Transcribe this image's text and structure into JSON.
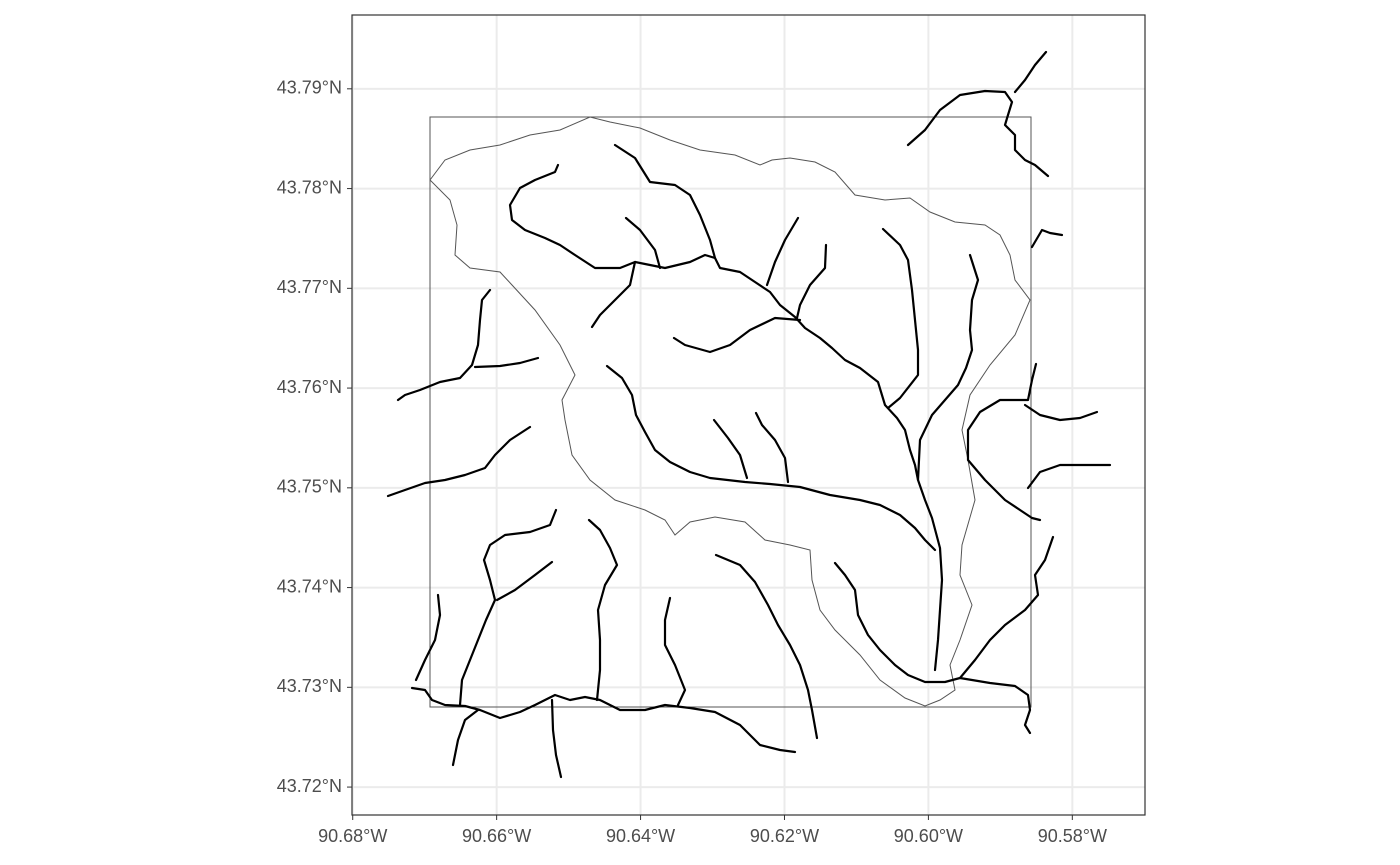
{
  "chart_data": {
    "type": "map",
    "xlim": [
      -90.6801,
      -90.5699
    ],
    "ylim": [
      43.7172,
      43.7974
    ],
    "xticks": [
      {
        "value": -90.68,
        "label": "90.68°W"
      },
      {
        "value": -90.66,
        "label": "90.66°W"
      },
      {
        "value": -90.64,
        "label": "90.64°W"
      },
      {
        "value": -90.62,
        "label": "90.62°W"
      },
      {
        "value": -90.6,
        "label": "90.60°W"
      },
      {
        "value": -90.58,
        "label": "90.58°W"
      }
    ],
    "yticks": [
      {
        "value": 43.72,
        "label": "43.72°N"
      },
      {
        "value": 43.73,
        "label": "43.73°N"
      },
      {
        "value": 43.74,
        "label": "43.74°N"
      },
      {
        "value": 43.75,
        "label": "43.75°N"
      },
      {
        "value": 43.76,
        "label": "43.76°N"
      },
      {
        "value": 43.77,
        "label": "43.77°N"
      },
      {
        "value": 43.78,
        "label": "43.78°N"
      },
      {
        "value": 43.79,
        "label": "43.79°N"
      }
    ],
    "grid": true
  }
}
